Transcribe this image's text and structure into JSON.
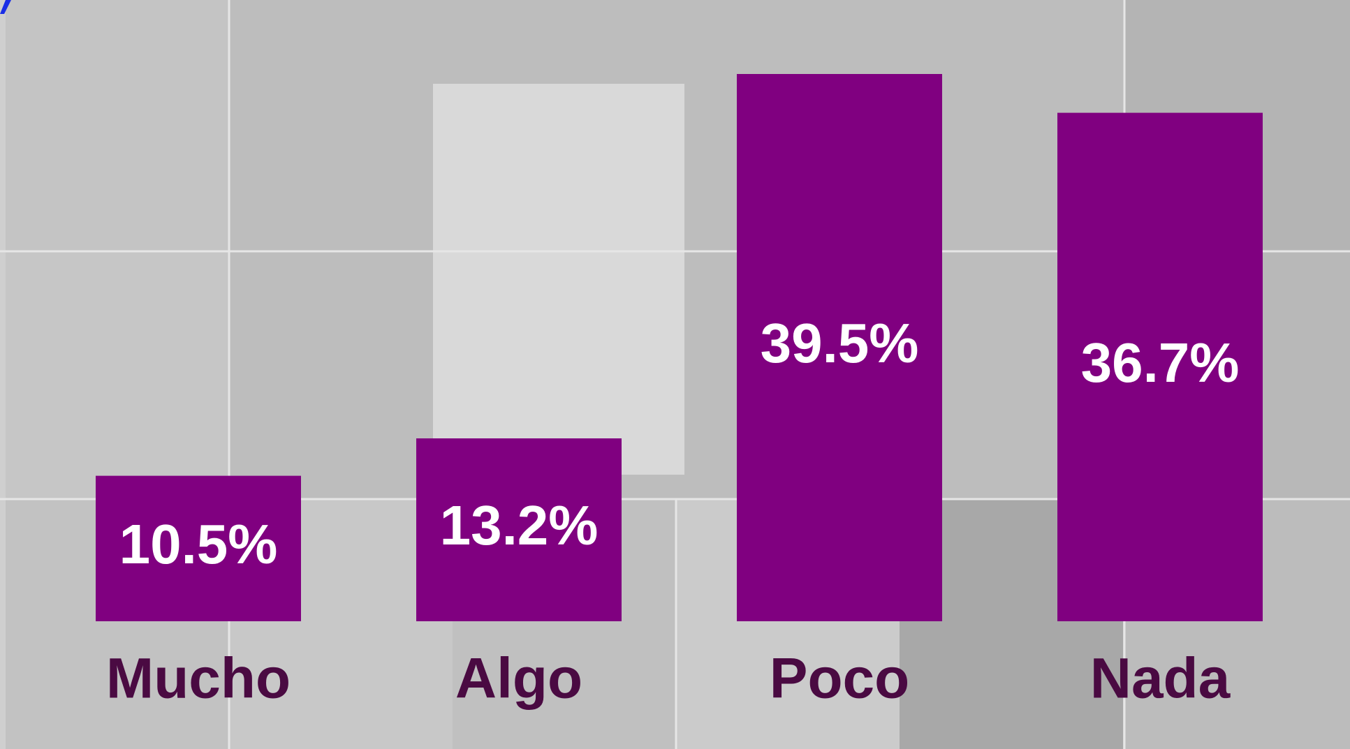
{
  "chart_data": {
    "type": "bar",
    "categories": [
      "Mucho",
      "Algo",
      "Poco",
      "Nada"
    ],
    "values": [
      10.5,
      13.2,
      39.5,
      36.7
    ],
    "value_labels": [
      "10.5%",
      "13.2%",
      "39.5%",
      "36.7%"
    ],
    "color": "#800080"
  }
}
